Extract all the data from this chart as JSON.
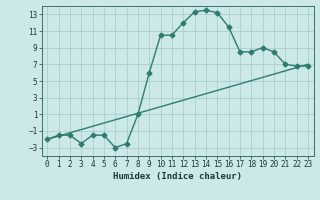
{
  "xlabel": "Humidex (Indice chaleur)",
  "background_color": "#cce8e8",
  "grid_color": "#aad0d0",
  "line_color": "#2e7d6e",
  "xlim": [
    -0.5,
    23.5
  ],
  "ylim": [
    -4,
    14
  ],
  "xticks": [
    0,
    1,
    2,
    3,
    4,
    5,
    6,
    7,
    8,
    9,
    10,
    11,
    12,
    13,
    14,
    15,
    16,
    17,
    18,
    19,
    20,
    21,
    22,
    23
  ],
  "yticks": [
    -3,
    -1,
    1,
    3,
    5,
    7,
    9,
    11,
    13
  ],
  "curve1_x": [
    0,
    1,
    2,
    3,
    4,
    5,
    6,
    7,
    8,
    9,
    10,
    11,
    12,
    13,
    14,
    15,
    16,
    17,
    18,
    19,
    20,
    21,
    22,
    23
  ],
  "curve1_y": [
    -2,
    -1.5,
    -1.5,
    -2.5,
    -1.5,
    -1.5,
    -3,
    -2.5,
    1,
    6,
    10.5,
    10.5,
    12,
    13.3,
    13.5,
    13.2,
    11.5,
    8.5,
    8.5,
    9,
    8.5,
    7,
    6.8,
    6.8
  ],
  "curve2_x": [
    0,
    23
  ],
  "curve2_y": [
    -2,
    7
  ],
  "marker_size": 2.5,
  "line_width": 1.0,
  "tick_fontsize": 5.5,
  "xlabel_fontsize": 6.5
}
